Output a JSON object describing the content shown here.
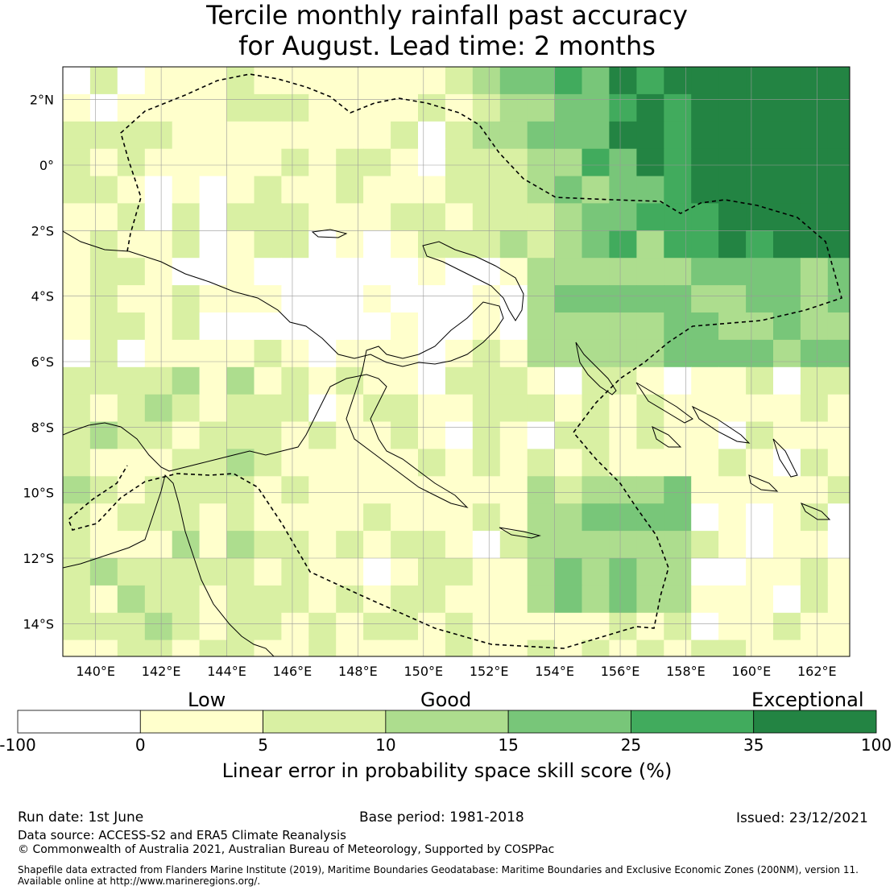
{
  "title_line1": "Tercile monthly rainfall past accuracy",
  "title_line2": "for August. Lead time: 2 months",
  "map": {
    "lon_ticks": [
      "140°E",
      "142°E",
      "144°E",
      "146°E",
      "148°E",
      "150°E",
      "152°E",
      "154°E",
      "156°E",
      "158°E",
      "160°E",
      "162°E"
    ],
    "lat_ticks": [
      "2°N",
      "0°",
      "2°S",
      "4°S",
      "6°S",
      "8°S",
      "10°S",
      "12°S",
      "14°S"
    ],
    "lon_range": [
      139,
      163
    ],
    "lat_range": [
      -15,
      3
    ],
    "cell_size_deg": 0.8333
  },
  "colorbar": {
    "label_low": "Low",
    "label_good": "Good",
    "label_exceptional": "Exceptional",
    "ticks": [
      "-100",
      "0",
      "5",
      "10",
      "15",
      "25",
      "35",
      "100"
    ],
    "colors": [
      "#ffffff",
      "#ffffcc",
      "#d9f0a3",
      "#addd8e",
      "#78c679",
      "#41ab5d",
      "#238443"
    ],
    "title": "Linear error in probability space skill score (%)"
  },
  "footer": {
    "run_date": "Run date: 1st June",
    "base_period": "Base period: 1981-2018",
    "issued": "Issued: 23/12/2021",
    "data_source": "Data source: ACCESS-S2 and ERA5 Climate Reanalysis",
    "copyright": "© Commonwealth of Australia 2021, Australian Bureau of Meteorology, Supported by COSPPac",
    "shapefile_line1": "Shapefile data extracted from Flanders Marine Institute (2019), Maritime Boundaries Geodatabase: Maritime Boundaries and Exclusive Economic Zones (200NM), version 11.",
    "shapefile_line2": "Available online at http://www.marineregions.org/."
  }
}
